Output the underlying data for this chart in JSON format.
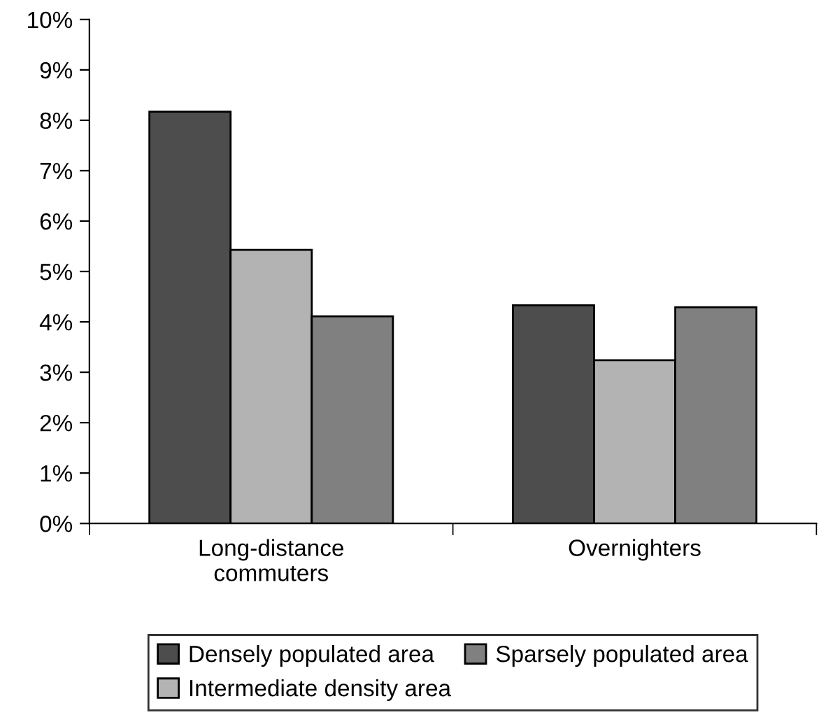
{
  "chart_data": {
    "type": "bar",
    "categories": [
      "Long-distance\ncommuters",
      "Overnighters"
    ],
    "series": [
      {
        "name": "Densely populated area",
        "color": "#4d4d4d",
        "values": [
          8.17,
          4.33
        ]
      },
      {
        "name": "Intermediate density area",
        "color": "#b3b3b3",
        "values": [
          5.43,
          3.24
        ]
      },
      {
        "name": "Sparsely populated area",
        "color": "#808080",
        "values": [
          4.11,
          4.29
        ]
      }
    ],
    "ylim": [
      0,
      10
    ],
    "yticks": [
      {
        "value": 0,
        "label": "0%"
      },
      {
        "value": 1,
        "label": "1%"
      },
      {
        "value": 2,
        "label": "2%"
      },
      {
        "value": 3,
        "label": "3%"
      },
      {
        "value": 4,
        "label": "4%"
      },
      {
        "value": 5,
        "label": "5%"
      },
      {
        "value": 6,
        "label": "6%"
      },
      {
        "value": 7,
        "label": "7%"
      },
      {
        "value": 8,
        "label": "8%"
      },
      {
        "value": 9,
        "label": "9%"
      },
      {
        "value": 10,
        "label": "10%"
      }
    ],
    "grid": false,
    "legend": "bottom"
  }
}
